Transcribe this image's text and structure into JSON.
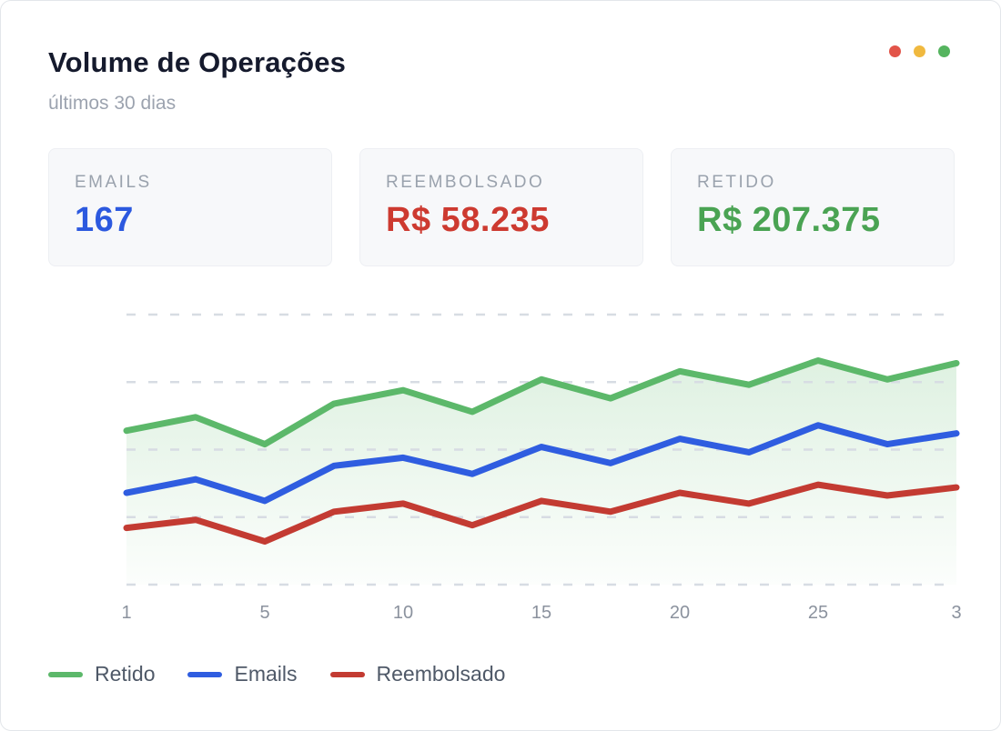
{
  "window": {
    "dots": [
      "#e25449",
      "#f0b93f",
      "#55b45f"
    ]
  },
  "header": {
    "title": "Volume de Operações",
    "subtitle": "últimos 30 dias"
  },
  "stats": [
    {
      "label": "EMAILS",
      "value": "167",
      "color": "#2c59df"
    },
    {
      "label": "REEMBOLSADO",
      "value": "R$ 58.235",
      "color": "#cd3a30"
    },
    {
      "label": "RETIDO",
      "value": "R$ 207.375",
      "color": "#4aa353"
    }
  ],
  "chart_data": {
    "type": "area",
    "title": "Volume de Operações",
    "subtitle": "últimos 30 dias",
    "points_per_series": 13,
    "x_tick_labels": [
      "1",
      "5",
      "10",
      "15",
      "20",
      "25",
      "3"
    ],
    "x_tick_point_indices": [
      0,
      2,
      4,
      6,
      8,
      10,
      12
    ],
    "y_axis_labeled": false,
    "ylim": [
      0,
      100
    ],
    "units": "relative (y-axis unlabeled, 0-100 of plot height)",
    "grid": "horizontal-dashed",
    "gridline_count": 5,
    "gridline_color": "#d7dce3",
    "tick_label_color": "#8b929e",
    "legend_position": "bottom",
    "series": [
      {
        "name": "Retido",
        "color": "#5cb86a",
        "area_fill": true,
        "values": [
          57,
          62,
          52,
          67,
          72,
          64,
          76,
          69,
          79,
          74,
          83,
          76,
          82
        ]
      },
      {
        "name": "Emails",
        "color": "#2f5de0",
        "area_fill": false,
        "values": [
          34,
          39,
          31,
          44,
          47,
          41,
          51,
          45,
          54,
          49,
          59,
          52,
          56
        ]
      },
      {
        "name": "Reembolsado",
        "color": "#c33b32",
        "area_fill": false,
        "values": [
          21,
          24,
          16,
          27,
          30,
          22,
          31,
          27,
          34,
          30,
          37,
          33,
          36
        ]
      }
    ]
  },
  "legend": [
    {
      "label": "Retido",
      "color": "#5cb86a"
    },
    {
      "label": "Emails",
      "color": "#2f5de0"
    },
    {
      "label": "Reembolsado",
      "color": "#c33b32"
    }
  ]
}
